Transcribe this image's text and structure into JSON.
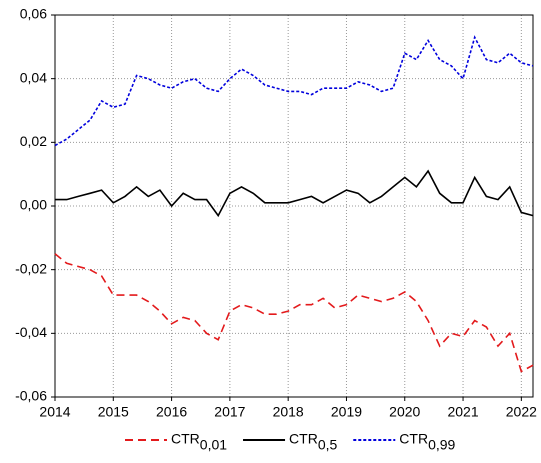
{
  "chart_data": {
    "type": "line",
    "x": [
      2014.0,
      2014.2,
      2014.4,
      2014.6,
      2014.8,
      2015.0,
      2015.2,
      2015.4,
      2015.6,
      2015.8,
      2016.0,
      2016.2,
      2016.4,
      2016.6,
      2016.8,
      2017.0,
      2017.2,
      2017.4,
      2017.6,
      2017.8,
      2018.0,
      2018.2,
      2018.4,
      2018.6,
      2018.8,
      2019.0,
      2019.2,
      2019.4,
      2019.6,
      2019.8,
      2020.0,
      2020.2,
      2020.4,
      2020.6,
      2020.8,
      2021.0,
      2021.2,
      2021.4,
      2021.6,
      2021.8,
      2022.0,
      2022.2
    ],
    "series": [
      {
        "name": "CTR",
        "name_subscript": "0,01",
        "color": "#e31a1c",
        "dash": "8,5",
        "values": [
          -0.015,
          -0.018,
          -0.019,
          -0.02,
          -0.022,
          -0.028,
          -0.028,
          -0.028,
          -0.03,
          -0.033,
          -0.037,
          -0.035,
          -0.036,
          -0.04,
          -0.042,
          -0.033,
          -0.031,
          -0.032,
          -0.034,
          -0.034,
          -0.033,
          -0.031,
          -0.031,
          -0.029,
          -0.032,
          -0.031,
          -0.028,
          -0.029,
          -0.03,
          -0.029,
          -0.027,
          -0.03,
          -0.036,
          -0.044,
          -0.04,
          -0.041,
          -0.036,
          -0.038,
          -0.044,
          -0.04,
          -0.052,
          -0.05
        ]
      },
      {
        "name": "CTR",
        "name_subscript": "0,5",
        "color": "#000000",
        "dash": "none",
        "values": [
          0.002,
          0.002,
          0.003,
          0.004,
          0.005,
          0.001,
          0.003,
          0.006,
          0.003,
          0.005,
          0.0,
          0.004,
          0.002,
          0.002,
          -0.003,
          0.004,
          0.006,
          0.004,
          0.001,
          0.001,
          0.001,
          0.002,
          0.003,
          0.001,
          0.003,
          0.005,
          0.004,
          0.001,
          0.003,
          0.006,
          0.009,
          0.006,
          0.011,
          0.004,
          0.001,
          0.001,
          0.009,
          0.003,
          0.002,
          0.006,
          -0.002,
          -0.003
        ]
      },
      {
        "name": "CTR",
        "name_subscript": "0,99",
        "color": "#0000dd",
        "dash": "3,2",
        "values": [
          0.019,
          0.021,
          0.024,
          0.027,
          0.033,
          0.031,
          0.032,
          0.041,
          0.04,
          0.038,
          0.037,
          0.039,
          0.04,
          0.037,
          0.036,
          0.04,
          0.043,
          0.041,
          0.038,
          0.037,
          0.036,
          0.036,
          0.035,
          0.037,
          0.037,
          0.037,
          0.039,
          0.038,
          0.036,
          0.037,
          0.048,
          0.046,
          0.052,
          0.046,
          0.044,
          0.04,
          0.053,
          0.046,
          0.045,
          0.048,
          0.045,
          0.044
        ]
      }
    ],
    "xlim": [
      2014,
      2022.2
    ],
    "xticks": [
      2014,
      2015,
      2016,
      2017,
      2018,
      2019,
      2020,
      2021,
      2022
    ],
    "ylim": [
      -0.06,
      0.06
    ],
    "yticks": [
      {
        "value": -0.06,
        "label": "-0,06"
      },
      {
        "value": -0.04,
        "label": "-0,04"
      },
      {
        "value": -0.02,
        "label": "-0,02"
      },
      {
        "value": 0,
        "label": "0,00"
      },
      {
        "value": 0.02,
        "label": "0,02"
      },
      {
        "value": 0.04,
        "label": "0,04"
      },
      {
        "value": 0.06,
        "label": "0,06"
      }
    ],
    "grid": true
  }
}
